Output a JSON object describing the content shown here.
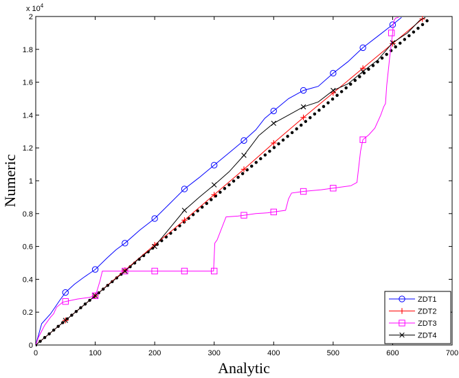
{
  "chart_data": {
    "type": "line",
    "title": "",
    "xlabel": "Analytic",
    "ylabel": "Numeric",
    "xlim": [
      0,
      700
    ],
    "ylim": [
      0,
      20000
    ],
    "x_ticks": [
      0,
      100,
      200,
      300,
      400,
      500,
      600,
      700
    ],
    "x_tick_labels": [
      "0",
      "100",
      "200",
      "300",
      "400",
      "500",
      "600",
      "700"
    ],
    "y_ticks": [
      0,
      2000,
      4000,
      6000,
      8000,
      10000,
      12000,
      14000,
      16000,
      18000,
      20000
    ],
    "y_tick_labels": [
      "0",
      "0.2",
      "0.4",
      "0.6",
      "0.8",
      "1",
      "1.2",
      "1.4",
      "1.6",
      "1.8",
      "2"
    ],
    "y_multiplier_label": "x 10",
    "y_multiplier_exp": "4",
    "grid": false,
    "legend_position": "bottom-right",
    "series": [
      {
        "name": "ZDT1",
        "color": "#0000ff",
        "marker": "circle",
        "x": [
          0,
          10,
          25,
          40,
          50,
          65,
          80,
          100,
          120,
          135,
          150,
          175,
          200,
          225,
          250,
          275,
          300,
          325,
          350,
          370,
          385,
          400,
          425,
          450,
          475,
          500,
          525,
          550,
          575,
          600,
          615
        ],
        "y": [
          0,
          1300,
          1900,
          2700,
          3200,
          3700,
          4100,
          4600,
          5300,
          5800,
          6200,
          7000,
          7700,
          8600,
          9500,
          10200,
          10950,
          11700,
          12450,
          13100,
          13800,
          14250,
          15000,
          15500,
          15750,
          16550,
          17250,
          18100,
          18800,
          19500,
          19950
        ],
        "markers_x": [
          50,
          100,
          150,
          200,
          250,
          300,
          350,
          400,
          450,
          500,
          550,
          600
        ],
        "markers_y": [
          3200,
          4600,
          6200,
          7700,
          9500,
          10950,
          12450,
          14250,
          15500,
          16550,
          18100,
          19500
        ]
      },
      {
        "name": "ZDT2",
        "color": "#ff0000",
        "marker": "plus",
        "x": [
          0,
          50,
          100,
          150,
          200,
          250,
          300,
          350,
          400,
          450,
          500,
          550,
          600,
          650
        ],
        "y": [
          0,
          1500,
          3000,
          4550,
          6100,
          7600,
          9150,
          10700,
          12300,
          13850,
          15350,
          16850,
          18350,
          19850
        ],
        "markers_x": [
          50,
          100,
          150,
          200,
          250,
          300,
          350,
          400,
          450,
          500,
          550,
          600,
          650
        ],
        "markers_y": [
          1500,
          3000,
          4550,
          6100,
          7600,
          9150,
          10700,
          12300,
          13850,
          15350,
          16850,
          18350,
          19850
        ]
      },
      {
        "name": "ZDT3",
        "color": "#ff00ff",
        "marker": "square",
        "x": [
          0,
          5,
          15,
          25,
          30,
          35,
          45,
          50,
          70,
          90,
          100,
          103,
          108,
          112,
          125,
          150,
          200,
          250,
          299,
          301,
          305,
          320,
          340,
          350,
          370,
          390,
          400,
          420,
          425,
          430,
          440,
          450,
          480,
          500,
          530,
          540,
          546,
          550,
          560,
          570,
          580,
          585,
          588,
          590,
          595,
          600,
          601,
          603,
          605,
          610
        ],
        "y": [
          0,
          500,
          1200,
          1700,
          1900,
          2300,
          2600,
          2650,
          2800,
          2900,
          3000,
          3300,
          3900,
          4500,
          4500,
          4500,
          4500,
          4500,
          4500,
          6200,
          6400,
          7800,
          7850,
          7900,
          8000,
          8050,
          8100,
          8200,
          8900,
          9250,
          9300,
          9350,
          9450,
          9550,
          9700,
          9900,
          11800,
          12500,
          12800,
          13200,
          14000,
          14500,
          14700,
          15800,
          17500,
          19000,
          19500,
          19800,
          19900,
          19950
        ],
        "markers_x": [
          50,
          100,
          150,
          200,
          250,
          300,
          350,
          400,
          450,
          500,
          550,
          598
        ],
        "markers_y": [
          2650,
          3000,
          4500,
          4500,
          4500,
          4500,
          7900,
          8100,
          9350,
          9550,
          12500,
          19000
        ]
      },
      {
        "name": "ZDT4",
        "color": "#000000",
        "marker": "x",
        "x": [
          0,
          50,
          100,
          150,
          175,
          200,
          225,
          250,
          275,
          300,
          325,
          350,
          375,
          400,
          425,
          450,
          475,
          500,
          525,
          550,
          575,
          600,
          625,
          645,
          655
        ],
        "y": [
          0,
          1500,
          3000,
          4500,
          5300,
          6000,
          7100,
          8200,
          9000,
          9750,
          10550,
          11550,
          12750,
          13500,
          14000,
          14500,
          14800,
          15500,
          15900,
          16650,
          17350,
          18400,
          19000,
          19750,
          19950
        ],
        "markers_x": [
          50,
          100,
          150,
          200,
          250,
          300,
          350,
          400,
          450,
          500,
          550,
          600
        ],
        "markers_y": [
          1500,
          3000,
          4500,
          6000,
          8200,
          9750,
          11550,
          13500,
          14500,
          15500,
          16650,
          18400
        ]
      }
    ],
    "reference_line": {
      "color": "#000000",
      "style": "dotted",
      "x": [
        0,
        660
      ],
      "y": [
        0,
        19800
      ]
    }
  }
}
